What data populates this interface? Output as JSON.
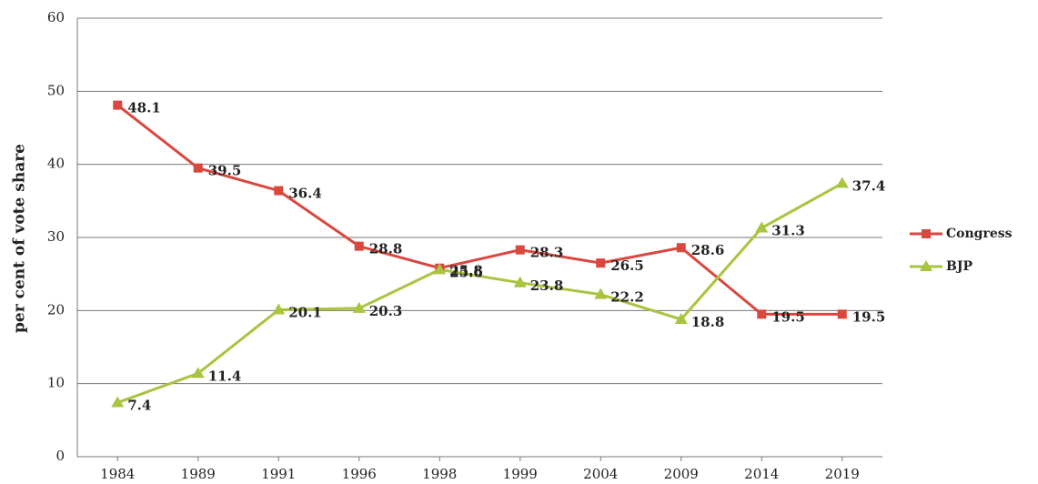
{
  "chart_data": {
    "type": "line",
    "y_label": "per cent of vote share",
    "categories": [
      "1984",
      "1989",
      "1991",
      "1996",
      "1998",
      "1999",
      "2004",
      "2009",
      "2014",
      "2019"
    ],
    "series": [
      {
        "name": "Congress",
        "color": "#d9473f",
        "marker": "square",
        "values": [
          48.1,
          39.5,
          36.4,
          28.8,
          25.8,
          28.3,
          26.5,
          28.6,
          19.5,
          19.5
        ]
      },
      {
        "name": "BJP",
        "color": "#a9c43f",
        "marker": "triangle",
        "values": [
          7.4,
          11.4,
          20.1,
          20.3,
          25.6,
          23.8,
          22.2,
          18.8,
          31.3,
          37.4
        ]
      }
    ],
    "ylim": [
      0,
      60
    ],
    "yticks": [
      0,
      10,
      20,
      30,
      40,
      50,
      60
    ],
    "grid": true,
    "legend": "right"
  }
}
